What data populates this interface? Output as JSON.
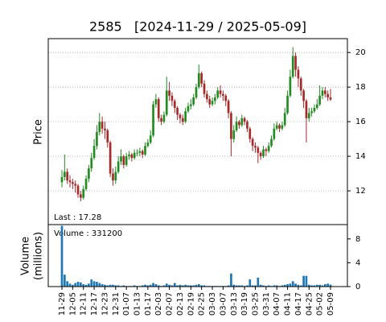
{
  "chart_data": {
    "type": "candlestick",
    "title": "2585   [2024-11-29 / 2025-05-09]",
    "y_label": "Price",
    "annotation": "Last : 17.28",
    "up_color": "#228b22",
    "down_color": "#a52a2a",
    "ylim": [
      10.05,
      20.8
    ],
    "yticks": [
      12,
      14,
      16,
      18,
      20
    ],
    "grid": true,
    "categories": [
      "11-29",
      null,
      null,
      null,
      "12-05",
      null,
      null,
      null,
      "12-11",
      null,
      null,
      null,
      "12-17",
      null,
      null,
      null,
      "12-23",
      null,
      null,
      null,
      "12-31",
      null,
      null,
      null,
      "01-07",
      null,
      null,
      null,
      "01-13",
      null,
      null,
      null,
      "01-17",
      null,
      null,
      null,
      "02-03",
      null,
      null,
      null,
      "02-07",
      null,
      null,
      null,
      "02-13",
      null,
      null,
      null,
      "02-19",
      null,
      null,
      null,
      "02-25",
      null,
      null,
      null,
      "03-03",
      null,
      null,
      null,
      "03-07",
      null,
      null,
      null,
      "03-13",
      null,
      null,
      null,
      "03-19",
      null,
      null,
      null,
      "03-25",
      null,
      null,
      null,
      "03-31",
      null,
      null,
      null,
      "04-07",
      null,
      null,
      null,
      "04-11",
      null,
      null,
      null,
      "04-17",
      null,
      null,
      null,
      "04-25",
      null,
      null,
      null,
      "05-02",
      null,
      null,
      null,
      "05-09"
    ],
    "open": [
      12.5,
      12.8,
      13.1,
      12.6,
      12.5,
      12.4,
      12.3,
      11.8,
      11.6,
      12.1,
      12.7,
      13.3,
      13.9,
      14.6,
      15.4,
      16.0,
      15.6,
      15.5,
      14.8,
      13.0,
      12.6,
      13.1,
      13.7,
      14.0,
      13.5,
      14.0,
      14.1,
      13.9,
      14.2,
      14.2,
      14.3,
      14.1,
      14.6,
      14.8,
      15.2,
      17.0,
      17.3,
      16.2,
      16.0,
      16.4,
      17.8,
      17.5,
      17.2,
      16.8,
      16.4,
      16.2,
      16.0,
      16.6,
      16.9,
      17.0,
      17.4,
      18.0,
      18.8,
      18.2,
      17.6,
      17.3,
      17.0,
      17.2,
      17.4,
      17.8,
      17.6,
      17.5,
      17.2,
      16.5,
      15.0,
      15.5,
      16.0,
      15.8,
      16.2,
      16.0,
      15.6,
      15.0,
      14.6,
      14.5,
      14.2,
      14.0,
      14.4,
      14.3,
      14.6,
      15.0,
      15.6,
      15.8,
      15.6,
      15.8,
      16.5,
      17.5,
      18.6,
      19.8,
      19.0,
      18.5,
      17.8,
      17.2,
      16.2,
      16.5,
      16.6,
      16.8,
      17.0,
      17.5,
      17.8,
      17.6,
      17.4
    ],
    "high": [
      13.2,
      14.1,
      13.3,
      12.9,
      12.7,
      12.6,
      12.4,
      12.0,
      12.3,
      12.9,
      13.5,
      14.2,
      15.0,
      15.8,
      16.5,
      16.3,
      16.0,
      15.6,
      14.9,
      13.3,
      13.4,
      14.0,
      14.4,
      14.1,
      14.2,
      14.3,
      14.2,
      14.4,
      14.4,
      14.5,
      14.4,
      14.8,
      15.0,
      15.5,
      17.2,
      17.6,
      17.4,
      16.4,
      16.6,
      18.6,
      18.3,
      17.7,
      17.3,
      16.9,
      16.5,
      16.4,
      16.8,
      17.1,
      17.3,
      17.6,
      18.2,
      19.3,
      18.9,
      18.4,
      17.8,
      17.5,
      17.4,
      17.6,
      18.0,
      18.1,
      17.8,
      17.6,
      17.3,
      16.6,
      15.8,
      16.3,
      16.1,
      16.4,
      16.3,
      16.1,
      15.7,
      15.1,
      14.8,
      14.6,
      14.3,
      14.6,
      14.5,
      14.8,
      15.2,
      15.9,
      16.0,
      15.9,
      16.0,
      16.8,
      17.8,
      19.0,
      20.3,
      20.0,
      19.2,
      18.6,
      17.9,
      17.3,
      16.8,
      16.8,
      17.0,
      17.3,
      18.1,
      18.0,
      18.0,
      17.8,
      17.9
    ],
    "low": [
      12.2,
      12.6,
      12.4,
      12.2,
      12.1,
      11.9,
      11.6,
      11.4,
      11.5,
      12.0,
      12.5,
      13.1,
      13.8,
      14.4,
      15.2,
      15.3,
      15.0,
      14.5,
      12.8,
      12.3,
      12.4,
      13.0,
      13.5,
      13.3,
      13.4,
      13.8,
      13.7,
      13.8,
      14.0,
      14.0,
      13.9,
      14.0,
      14.5,
      14.7,
      15.1,
      16.8,
      16.0,
      15.8,
      15.9,
      16.3,
      17.2,
      16.9,
      16.5,
      16.1,
      15.9,
      15.8,
      15.9,
      16.5,
      16.7,
      16.9,
      17.3,
      17.9,
      18.0,
      17.4,
      17.1,
      16.8,
      16.9,
      17.0,
      17.3,
      17.4,
      17.2,
      16.9,
      16.2,
      14.0,
      14.8,
      15.4,
      15.6,
      15.7,
      15.8,
      15.4,
      14.8,
      14.3,
      14.2,
      13.6,
      13.8,
      13.9,
      14.0,
      14.2,
      14.5,
      14.9,
      15.5,
      15.4,
      15.5,
      15.7,
      16.4,
      17.4,
      18.5,
      18.6,
      18.0,
      17.5,
      16.8,
      14.8,
      16.0,
      16.3,
      16.5,
      16.7,
      16.9,
      17.3,
      17.4,
      17.2,
      17.2
    ],
    "close": [
      12.8,
      13.1,
      12.6,
      12.5,
      12.4,
      12.3,
      11.8,
      11.6,
      12.1,
      12.7,
      13.3,
      13.9,
      14.6,
      15.4,
      16.0,
      15.6,
      15.5,
      14.8,
      13.0,
      12.6,
      13.1,
      13.7,
      14.0,
      13.5,
      14.0,
      14.1,
      13.9,
      14.2,
      14.2,
      14.3,
      14.1,
      14.6,
      14.8,
      15.2,
      17.0,
      17.3,
      16.2,
      16.0,
      16.4,
      17.8,
      17.5,
      17.2,
      16.8,
      16.4,
      16.2,
      16.0,
      16.6,
      16.9,
      17.0,
      17.4,
      18.0,
      18.8,
      18.2,
      17.6,
      17.3,
      17.0,
      17.2,
      17.4,
      17.8,
      17.6,
      17.5,
      17.2,
      16.5,
      15.0,
      15.5,
      16.0,
      15.8,
      16.2,
      16.0,
      15.6,
      15.0,
      14.6,
      14.5,
      14.2,
      14.0,
      14.4,
      14.3,
      14.6,
      15.0,
      15.6,
      15.8,
      15.6,
      15.8,
      16.5,
      17.5,
      18.6,
      19.8,
      19.0,
      18.5,
      17.8,
      17.2,
      16.2,
      16.5,
      16.6,
      16.8,
      17.0,
      17.5,
      17.8,
      17.6,
      17.4,
      17.28
    ],
    "volume": {
      "y_label": [
        "Volume",
        "(millions)"
      ],
      "annotation": "Volume : 331200",
      "color": "#1f77b4",
      "ylim": [
        0,
        10.4
      ],
      "yticks": [
        0,
        4,
        8
      ],
      "values": [
        10.2,
        2.0,
        0.9,
        0.5,
        0.3,
        0.6,
        0.8,
        0.7,
        0.4,
        0.3,
        0.5,
        1.2,
        0.9,
        0.8,
        0.6,
        0.4,
        0.3,
        0.2,
        0.3,
        0.3,
        0.2,
        0.2,
        0.1,
        0.2,
        0.1,
        0.1,
        0.1,
        0.2,
        0.1,
        0.1,
        0.2,
        0.3,
        0.2,
        0.3,
        0.6,
        0.4,
        0.2,
        0.1,
        0.2,
        0.5,
        0.3,
        0.2,
        0.6,
        0.2,
        0.3,
        0.2,
        0.3,
        0.2,
        0.2,
        0.2,
        0.3,
        0.4,
        0.2,
        0.2,
        0.1,
        0.1,
        0.1,
        0.1,
        0.1,
        0.1,
        0.1,
        0.1,
        0.2,
        2.2,
        0.3,
        0.2,
        0.2,
        0.2,
        0.1,
        0.2,
        1.2,
        0.2,
        0.2,
        1.5,
        0.3,
        0.2,
        0.1,
        0.2,
        0.1,
        0.2,
        0.2,
        0.1,
        0.2,
        0.3,
        0.4,
        0.5,
        0.9,
        0.5,
        0.3,
        0.2,
        1.8,
        1.8,
        0.3,
        0.2,
        0.2,
        0.3,
        0.3,
        0.2,
        0.4,
        0.5,
        0.3312
      ]
    }
  }
}
